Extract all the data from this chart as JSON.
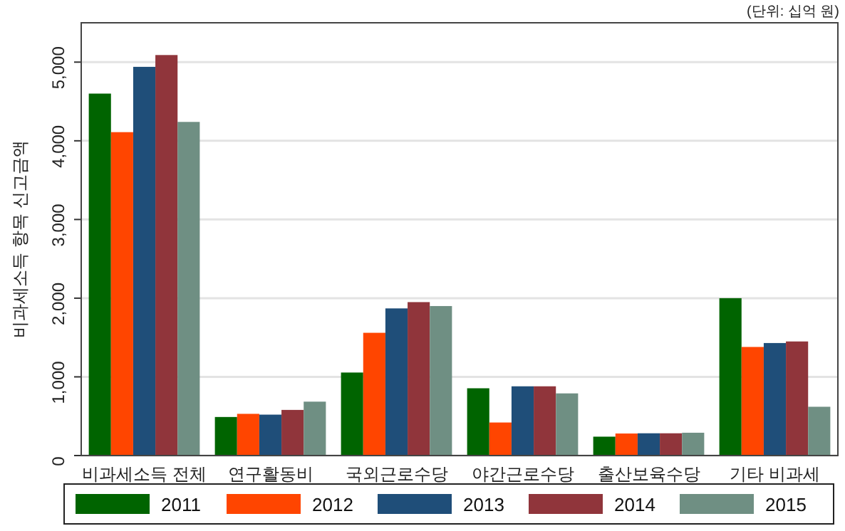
{
  "chart_data": {
    "type": "bar",
    "ylabel": "비과세소득 항목 신고금액",
    "annotations": [
      "(단위: 십억 원)"
    ],
    "categories": [
      "비과세소득 전체",
      "연구활동비",
      "국외근로수당",
      "야간근로수당",
      "출산보육수당",
      "기타 비과세"
    ],
    "series": [
      {
        "name": "2011",
        "color": "#006400",
        "values": [
          4600,
          490,
          1055,
          855,
          240,
          2000
        ]
      },
      {
        "name": "2012",
        "color": "#ff4500",
        "values": [
          4110,
          530,
          1560,
          420,
          280,
          1380
        ]
      },
      {
        "name": "2013",
        "color": "#1f4e79",
        "values": [
          4940,
          520,
          1870,
          880,
          283,
          1430
        ]
      },
      {
        "name": "2014",
        "color": "#90353b",
        "values": [
          5090,
          580,
          1950,
          880,
          283,
          1450
        ]
      },
      {
        "name": "2015",
        "color": "#6f8f83",
        "values": [
          4240,
          685,
          1900,
          790,
          290,
          620
        ]
      }
    ],
    "ylim": [
      0,
      5500
    ],
    "yticks": [
      {
        "value": 0,
        "label": "0"
      },
      {
        "value": 1000,
        "label": "1,000"
      },
      {
        "value": 2000,
        "label": "2,000"
      },
      {
        "value": 3000,
        "label": "3,000"
      },
      {
        "value": 4000,
        "label": "4,000"
      },
      {
        "value": 5000,
        "label": "5,000"
      }
    ],
    "grid": "y",
    "legend": "bottom"
  }
}
